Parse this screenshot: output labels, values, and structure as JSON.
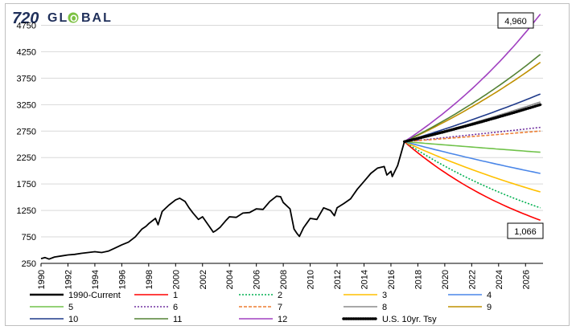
{
  "brand": {
    "prefix": "720",
    "letters_a": "GL",
    "o_letter": "O",
    "letters_b": "BAL"
  },
  "callouts": {
    "top": "4,960",
    "bottom": "1,066"
  },
  "colors": {
    "brand_green": "#7cc142",
    "hist": "#000000",
    "s1": "#ff0000",
    "s2": "#00b050",
    "s3": "#ffc000",
    "s4": "#4a86e8",
    "s5": "#70c24a",
    "s6": "#7030a0",
    "s7": "#ed7d31",
    "s8": "#8c8c8c",
    "s9": "#bf9000",
    "s10": "#1f3a8a",
    "s11": "#548235",
    "s12": "#a040c0",
    "tsy": "#000000",
    "grid": "#d9d9d9"
  },
  "chart_data": {
    "type": "line",
    "title": "",
    "xlabel": "",
    "ylabel": "",
    "ylim": [
      250,
      5000
    ],
    "xlim": [
      1990,
      2027.3
    ],
    "y_ticks": [
      250,
      750,
      1250,
      1750,
      2250,
      2750,
      3250,
      3750,
      4250,
      4750
    ],
    "x_ticks": [
      "1990",
      "1992",
      "1994",
      "1996",
      "1998",
      "2000",
      "2002",
      "2004",
      "2006",
      "2008",
      "2010",
      "2012",
      "2014",
      "2016",
      "2018",
      "2020",
      "2022",
      "2024",
      "2026"
    ],
    "grid": "horizontal",
    "legend_position": "bottom",
    "historical": {
      "name": "1990-Current",
      "x": [
        1990.0,
        1990.3,
        1990.6,
        1991.0,
        1991.5,
        1992.0,
        1992.5,
        1993.0,
        1993.5,
        1994.0,
        1994.5,
        1995.0,
        1995.5,
        1996.0,
        1996.5,
        1997.0,
        1997.5,
        1997.8,
        1998.0,
        1998.5,
        1998.7,
        1999.0,
        1999.5,
        2000.0,
        2000.3,
        2000.7,
        2001.0,
        2001.3,
        2001.7,
        2002.0,
        2002.5,
        2002.8,
        2003.0,
        2003.3,
        2003.7,
        2004.0,
        2004.5,
        2005.0,
        2005.5,
        2006.0,
        2006.5,
        2007.0,
        2007.5,
        2007.8,
        2008.0,
        2008.5,
        2008.8,
        2009.0,
        2009.2,
        2009.5,
        2010.0,
        2010.5,
        2011.0,
        2011.5,
        2011.8,
        2012.0,
        2012.5,
        2013.0,
        2013.5,
        2014.0,
        2014.5,
        2015.0,
        2015.5,
        2015.7,
        2016.0,
        2016.1,
        2016.5,
        2017.0
      ],
      "y": [
        340,
        360,
        330,
        370,
        390,
        410,
        420,
        440,
        455,
        470,
        455,
        480,
        540,
        600,
        650,
        750,
        900,
        950,
        1000,
        1100,
        980,
        1230,
        1350,
        1450,
        1480,
        1420,
        1300,
        1200,
        1080,
        1130,
        950,
        840,
        870,
        930,
        1050,
        1130,
        1120,
        1200,
        1210,
        1280,
        1270,
        1420,
        1520,
        1510,
        1400,
        1280,
        900,
        820,
        760,
        920,
        1100,
        1080,
        1300,
        1250,
        1150,
        1300,
        1380,
        1470,
        1650,
        1800,
        1950,
        2050,
        2080,
        1920,
        1990,
        1890,
        2100,
        2550
      ]
    },
    "projections": {
      "start_x": 2017.0,
      "end_x": 2027.1,
      "start_y": 2550,
      "series": [
        {
          "name": "1",
          "end": 1066,
          "style": "solid"
        },
        {
          "name": "2",
          "end": 1300,
          "style": "dotted"
        },
        {
          "name": "3",
          "end": 1600,
          "style": "solid"
        },
        {
          "name": "4",
          "end": 1950,
          "style": "solid"
        },
        {
          "name": "5",
          "end": 2350,
          "style": "solid"
        },
        {
          "name": "6",
          "end": 2820,
          "style": "dotted"
        },
        {
          "name": "7",
          "end": 2750,
          "style": "dashed"
        },
        {
          "name": "8",
          "end": 3300,
          "style": "solid"
        },
        {
          "name": "9",
          "end": 4050,
          "style": "solid"
        },
        {
          "name": "10",
          "end": 3450,
          "style": "solid"
        },
        {
          "name": "11",
          "end": 4200,
          "style": "solid"
        },
        {
          "name": "12",
          "end": 4960,
          "style": "solid"
        },
        {
          "name": "U.S. 10yr. Tsy",
          "end": 3250,
          "style": "bolddot"
        }
      ]
    }
  }
}
